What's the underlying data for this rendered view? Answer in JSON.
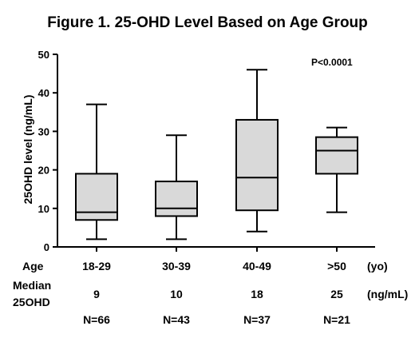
{
  "chart_data": {
    "type": "box",
    "title": "Figure 1. 25-OHD Level Based on Age Group",
    "ylabel": "25OHD level (ng/mL)",
    "ylim": [
      0,
      50
    ],
    "yticks": [
      0,
      10,
      20,
      30,
      40,
      50
    ],
    "annotation": "P<0.0001",
    "categories": [
      "18-29",
      "30-39",
      "40-49",
      ">50"
    ],
    "boxes": [
      {
        "category": "18-29",
        "min": 2,
        "q1": 7,
        "median": 9,
        "q3": 19,
        "max": 37
      },
      {
        "category": "30-39",
        "min": 2,
        "q1": 8,
        "median": 10,
        "q3": 17,
        "max": 29
      },
      {
        "category": "40-49",
        "min": 4,
        "q1": 9.5,
        "median": 18,
        "q3": 33,
        "max": 46
      },
      {
        "category": ">50",
        "min": 9,
        "q1": 19,
        "median": 25,
        "q3": 28.5,
        "max": 31
      }
    ],
    "box_color": "#d9d9d9"
  },
  "table": {
    "age_label": "Age",
    "age_unit": "(yo)",
    "median_label_line1": "Median",
    "median_label_line2": "25OHD",
    "median_unit": "(ng/mL)",
    "medians": [
      "9",
      "10",
      "18",
      "25"
    ],
    "counts": [
      "N=66",
      "N=43",
      "N=37",
      "N=21"
    ]
  }
}
